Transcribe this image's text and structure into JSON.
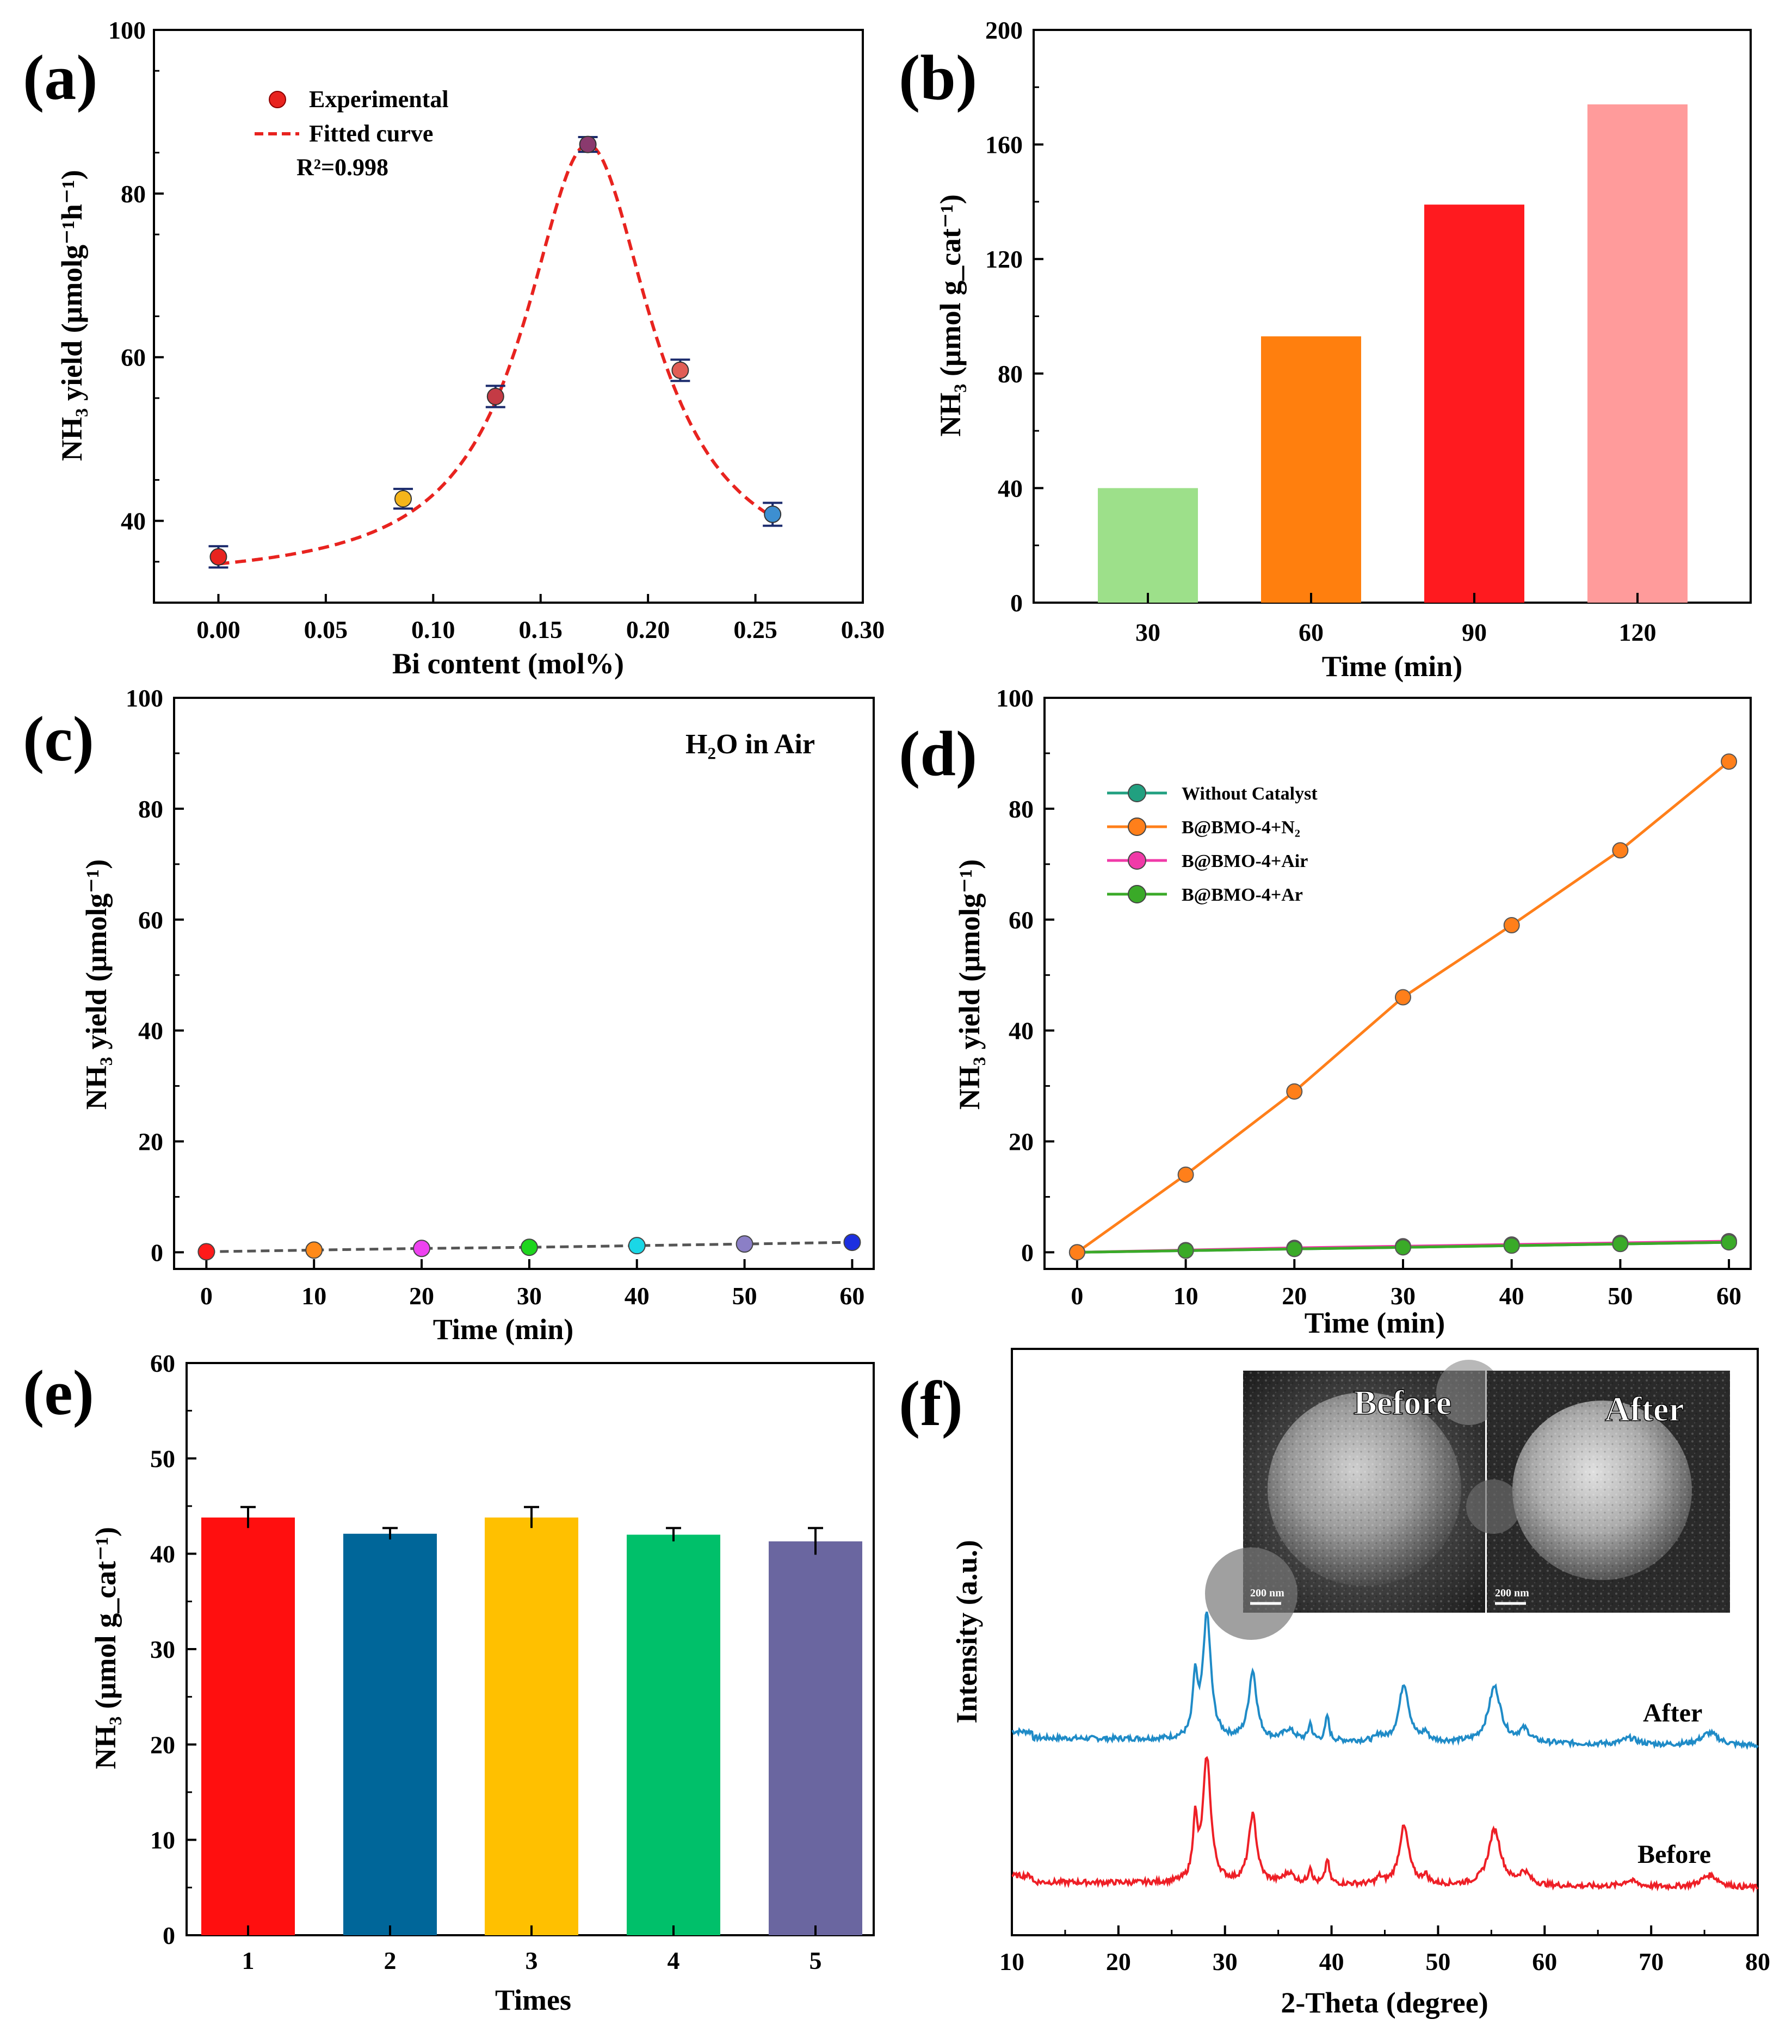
{
  "chart_data": [
    {
      "type": "scatter",
      "panel_label": "(a)",
      "title": "",
      "xlabel": "Bi content (mol%)",
      "ylabel": "NH₃ yield (μmolg⁻¹h⁻¹)",
      "xlim": [
        -0.03,
        0.3
      ],
      "ylim": [
        30,
        100
      ],
      "xticks": [
        "0.00",
        "0.05",
        "0.10",
        "0.15",
        "0.20",
        "0.25",
        "0.30"
      ],
      "yticks": [
        "40",
        "60",
        "80",
        "100"
      ],
      "legend": {
        "experimental": "Experimental",
        "fitted": "Fitted curve",
        "r2": "R²=0.998"
      },
      "points": [
        {
          "x": 0.0,
          "y": 35.6,
          "err": 1.3,
          "color": "#e8231f"
        },
        {
          "x": 0.086,
          "y": 42.7,
          "err": 1.2,
          "color": "#f5b51a"
        },
        {
          "x": 0.129,
          "y": 55.2,
          "err": 1.3,
          "color": "#c43b45"
        },
        {
          "x": 0.172,
          "y": 86.0,
          "err": 0.9,
          "color": "#8a3a6e"
        },
        {
          "x": 0.215,
          "y": 58.4,
          "err": 1.3,
          "color": "#e15d55"
        },
        {
          "x": 0.258,
          "y": 40.8,
          "err": 1.4,
          "color": "#3d8fd1"
        }
      ],
      "fit": {
        "type": "lorentzian",
        "baseline": 32.5,
        "peak": 86.0,
        "center": 0.172,
        "width": 0.036
      }
    },
    {
      "type": "bar",
      "panel_label": "(b)",
      "xlabel": "Time (min)",
      "ylabel": "NH₃ (μmol g_cat⁻¹)",
      "ylim": [
        0,
        200
      ],
      "yticks": [
        "0",
        "40",
        "80",
        "120",
        "160",
        "200"
      ],
      "categories": [
        "30",
        "60",
        "90",
        "120"
      ],
      "values": [
        40,
        93,
        139,
        174
      ],
      "colors": [
        "#9de08a",
        "#ff7f0e",
        "#ff1a1f",
        "#ff9b9b"
      ]
    },
    {
      "type": "scatter",
      "panel_label": "(c)",
      "annotation": "H₂O in Air",
      "xlabel": "Time (min)",
      "ylabel": "NH₃ yield (μmolg⁻¹)",
      "xlim": [
        -3,
        62
      ],
      "ylim": [
        -3,
        100
      ],
      "xticks": [
        "0",
        "10",
        "20",
        "30",
        "40",
        "50",
        "60"
      ],
      "yticks": [
        "0",
        "20",
        "40",
        "60",
        "80",
        "100"
      ],
      "x": [
        0,
        10,
        20,
        30,
        40,
        50,
        60
      ],
      "y": [
        0.1,
        0.4,
        0.7,
        0.9,
        1.2,
        1.5,
        1.8
      ],
      "colors": [
        "#ff1a1a",
        "#ff8a1a",
        "#ee42f0",
        "#1ed51e",
        "#1ad7e6",
        "#8b7fc6",
        "#1c2fe0"
      ]
    },
    {
      "type": "line",
      "panel_label": "(d)",
      "xlabel": "Time (min)",
      "ylabel": "NH₃ yield (μmolg⁻¹)",
      "xlim": [
        -3,
        62
      ],
      "ylim": [
        -3,
        100
      ],
      "xticks": [
        "0",
        "10",
        "20",
        "30",
        "40",
        "50",
        "60"
      ],
      "yticks": [
        "0",
        "20",
        "40",
        "60",
        "80",
        "100"
      ],
      "x": [
        0,
        10,
        20,
        30,
        40,
        50,
        60
      ],
      "series": [
        {
          "name": "Without Catalyst",
          "color": "#21a080",
          "values": [
            0,
            0.3,
            0.6,
            0.9,
            1.2,
            1.5,
            1.8
          ]
        },
        {
          "name": "B@BMO-4+N₂",
          "color": "#ff7f1a",
          "values": [
            0,
            14,
            29,
            46,
            59,
            72.5,
            88.5
          ]
        },
        {
          "name": "B@BMO-4+Air",
          "color": "#f03aa8",
          "values": [
            0,
            0.4,
            0.8,
            1.1,
            1.4,
            1.7,
            2.0
          ]
        },
        {
          "name": "B@BMO-4+Ar",
          "color": "#3aaa28",
          "values": [
            0,
            0.3,
            0.6,
            0.9,
            1.2,
            1.5,
            1.8
          ]
        }
      ]
    },
    {
      "type": "bar",
      "panel_label": "(e)",
      "xlabel": "Times",
      "ylabel": "NH₃ (μmol g_cat⁻¹)",
      "ylim": [
        0,
        60
      ],
      "yticks": [
        "0",
        "10",
        "20",
        "30",
        "40",
        "50",
        "60"
      ],
      "categories": [
        "1",
        "2",
        "3",
        "4",
        "5"
      ],
      "values": [
        43.8,
        42.1,
        43.8,
        42.0,
        41.3
      ],
      "errors": [
        1.1,
        0.6,
        1.1,
        0.7,
        1.4
      ],
      "colors": [
        "#ff0f0f",
        "#006699",
        "#ffc000",
        "#00c06a",
        "#6a66a0"
      ]
    },
    {
      "type": "line",
      "panel_label": "(f)",
      "xlabel": "2-Theta (degree)",
      "ylabel": "Intensity (a.u.)",
      "xlim": [
        10,
        80
      ],
      "xticks": [
        "10",
        "20",
        "30",
        "40",
        "50",
        "60",
        "70",
        "80"
      ],
      "series": [
        {
          "name": "After",
          "color": "#1f8bc7"
        },
        {
          "name": "Before",
          "color": "#ee1f26"
        }
      ],
      "peaks": [
        {
          "pos": 27.2,
          "h": 0.28,
          "w": 0.25
        },
        {
          "pos": 28.3,
          "h": 0.6,
          "w": 0.45
        },
        {
          "pos": 32.6,
          "h": 0.33,
          "w": 0.45
        },
        {
          "pos": 36.0,
          "h": 0.05,
          "w": 0.6
        },
        {
          "pos": 38.0,
          "h": 0.08,
          "w": 0.2
        },
        {
          "pos": 39.6,
          "h": 0.12,
          "w": 0.2
        },
        {
          "pos": 44.5,
          "h": 0.03,
          "w": 0.3
        },
        {
          "pos": 46.8,
          "h": 0.28,
          "w": 0.55
        },
        {
          "pos": 48.8,
          "h": 0.04,
          "w": 0.3
        },
        {
          "pos": 55.3,
          "h": 0.27,
          "w": 0.7
        },
        {
          "pos": 58.1,
          "h": 0.06,
          "w": 0.6
        },
        {
          "pos": 68.0,
          "h": 0.03,
          "w": 0.8
        },
        {
          "pos": 75.5,
          "h": 0.06,
          "w": 1.0
        }
      ],
      "inset": {
        "before_label": "Before",
        "after_label": "After",
        "scale_bar": "200 nm"
      }
    }
  ]
}
